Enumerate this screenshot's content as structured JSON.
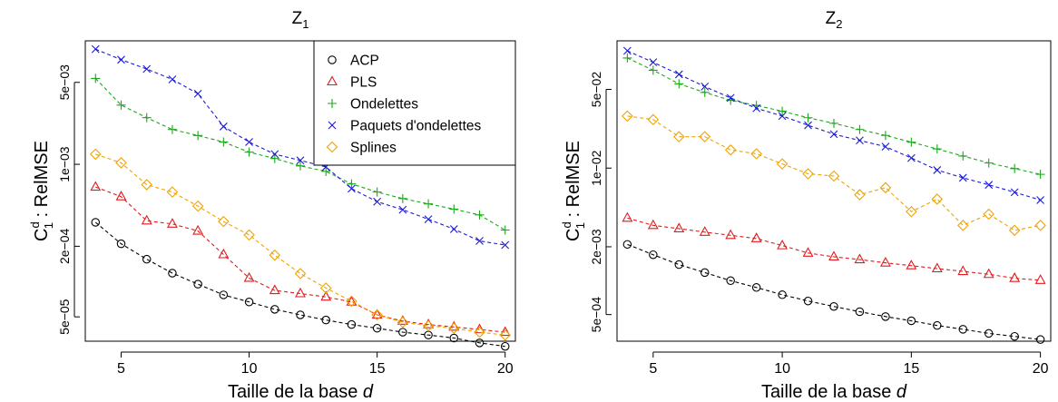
{
  "colors": {
    "ACP": "#000000",
    "PLS": "#e41a1c",
    "Ondelettes": "#1aa81a",
    "Paquets d'ondelettes": "#1a1ad6",
    "Splines": "#f0a202"
  },
  "chart_data": [
    {
      "type": "line",
      "title": "Z",
      "title_sub": "1",
      "xlabel": "Taille de la base",
      "xlabel_italic": "d",
      "ylabel_main": "C",
      "ylabel_sup": "d",
      "ylabel_sub": "1",
      "ylabel_rest": " : RelMSE",
      "y_scale": "log",
      "xlim": [
        3.6,
        20.4
      ],
      "ylim": [
        3.1e-05,
        0.0113
      ],
      "x_ticks": [
        5,
        10,
        15,
        20
      ],
      "x_tick_labels": [
        "5",
        "10",
        "15",
        "20"
      ],
      "y_ticks": [
        5e-05,
        0.0002,
        0.001,
        0.005
      ],
      "y_tick_labels": [
        "5e−05",
        "2e−04",
        "1e−03",
        "5e−03"
      ],
      "grid": false,
      "legend": {
        "position": "top-right",
        "entries": [
          {
            "name": "ACP",
            "marker": "circle"
          },
          {
            "name": "PLS",
            "marker": "triangle"
          },
          {
            "name": "Ondelettes",
            "marker": "plus"
          },
          {
            "name": "Paquets d'ondelettes",
            "marker": "cross"
          },
          {
            "name": "Splines",
            "marker": "diamond"
          }
        ]
      },
      "x": [
        4,
        5,
        6,
        7,
        8,
        9,
        10,
        11,
        12,
        13,
        14,
        15,
        16,
        17,
        18,
        19,
        20
      ],
      "series": [
        {
          "name": "ACP",
          "marker": "circle",
          "values": [
            0.00032,
            0.00021,
            0.000155,
            0.000118,
            9.5e-05,
            7.7e-05,
            6.7e-05,
            5.8e-05,
            5.2e-05,
            4.7e-05,
            4.3e-05,
            4e-05,
            3.7e-05,
            3.5e-05,
            3.3e-05,
            3e-05,
            2.8e-05
          ]
        },
        {
          "name": "PLS",
          "marker": "triangle",
          "values": [
            0.00064,
            0.00053,
            0.00033,
            0.00031,
            0.00027,
            0.00017,
            0.000107,
            8.4e-05,
            7.9e-05,
            7.4e-05,
            6.7e-05,
            5.2e-05,
            4.6e-05,
            4.3e-05,
            4.1e-05,
            3.9e-05,
            3.7e-05
          ]
        },
        {
          "name": "Ondelettes",
          "marker": "plus",
          "values": [
            0.0054,
            0.0032,
            0.0025,
            0.00198,
            0.00176,
            0.00155,
            0.00127,
            0.00112,
            0.00097,
            0.00087,
            0.00068,
            0.00058,
            0.00051,
            0.00046,
            0.000415,
            0.00037,
            0.000275
          ]
        },
        {
          "name": "Paquets d'ondelettes",
          "marker": "cross",
          "values": [
            0.0096,
            0.0078,
            0.0065,
            0.0053,
            0.004,
            0.0021,
            0.00155,
            0.00122,
            0.00108,
            0.00095,
            0.00062,
            0.00048,
            0.00041,
            0.00034,
            0.00028,
            0.000222,
            0.000205
          ]
        },
        {
          "name": "Splines",
          "marker": "diamond",
          "values": [
            0.00122,
            0.00103,
            0.00067,
            0.00058,
            0.00044,
            0.000325,
            0.00025,
            0.000168,
            0.000117,
            8.8e-05,
            6.8e-05,
            5.2e-05,
            4.5e-05,
            4.2e-05,
            4e-05,
            3.7e-05,
            3.5e-05
          ]
        }
      ]
    },
    {
      "type": "line",
      "title": "Z",
      "title_sub": "2",
      "xlabel": "Taille de la base",
      "xlabel_italic": "d",
      "ylabel_main": "C",
      "ylabel_sup": "d",
      "ylabel_sub": "1",
      "ylabel_rest": " : RelMSE",
      "y_scale": "log",
      "xlim": [
        3.6,
        20.4
      ],
      "ylim": [
        0.00029,
        0.135
      ],
      "x_ticks": [
        5,
        10,
        15,
        20
      ],
      "x_tick_labels": [
        "5",
        "10",
        "15",
        "20"
      ],
      "y_ticks": [
        0.0005,
        0.002,
        0.01,
        0.05
      ],
      "y_tick_labels": [
        "5e−04",
        "2e−03",
        "1e−02",
        "5e−02"
      ],
      "grid": false,
      "x": [
        4,
        5,
        6,
        7,
        8,
        9,
        10,
        11,
        12,
        13,
        14,
        15,
        16,
        17,
        18,
        19,
        20
      ],
      "series": [
        {
          "name": "ACP",
          "marker": "circle",
          "values": [
            0.0021,
            0.0017,
            0.00139,
            0.00118,
            0.001,
            0.00087,
            0.00075,
            0.00066,
            0.00059,
            0.00053,
            0.00048,
            0.00044,
            0.0004,
            0.00037,
            0.00034,
            0.00032,
            0.0003
          ]
        },
        {
          "name": "PLS",
          "marker": "triangle",
          "values": [
            0.0036,
            0.0031,
            0.0029,
            0.0027,
            0.00253,
            0.00237,
            0.00205,
            0.00176,
            0.00163,
            0.00154,
            0.00144,
            0.00136,
            0.00128,
            0.00121,
            0.00114,
            0.00105,
            0.00101
          ]
        },
        {
          "name": "Ondelettes",
          "marker": "plus",
          "values": [
            0.095,
            0.074,
            0.056,
            0.047,
            0.04,
            0.036,
            0.032,
            0.028,
            0.025,
            0.022,
            0.0195,
            0.017,
            0.0148,
            0.0128,
            0.0111,
            0.0099,
            0.0088
          ]
        },
        {
          "name": "Paquets d'ondelettes",
          "marker": "cross",
          "values": [
            0.11,
            0.087,
            0.068,
            0.053,
            0.042,
            0.034,
            0.029,
            0.024,
            0.02,
            0.0176,
            0.0155,
            0.0123,
            0.0096,
            0.0082,
            0.0071,
            0.0061,
            0.0052
          ]
        },
        {
          "name": "Splines",
          "marker": "diamond",
          "values": [
            0.029,
            0.027,
            0.019,
            0.019,
            0.0145,
            0.0134,
            0.0109,
            0.0089,
            0.0085,
            0.0058,
            0.0067,
            0.0041,
            0.0053,
            0.0031,
            0.0039,
            0.0028,
            0.0031
          ]
        }
      ]
    }
  ]
}
